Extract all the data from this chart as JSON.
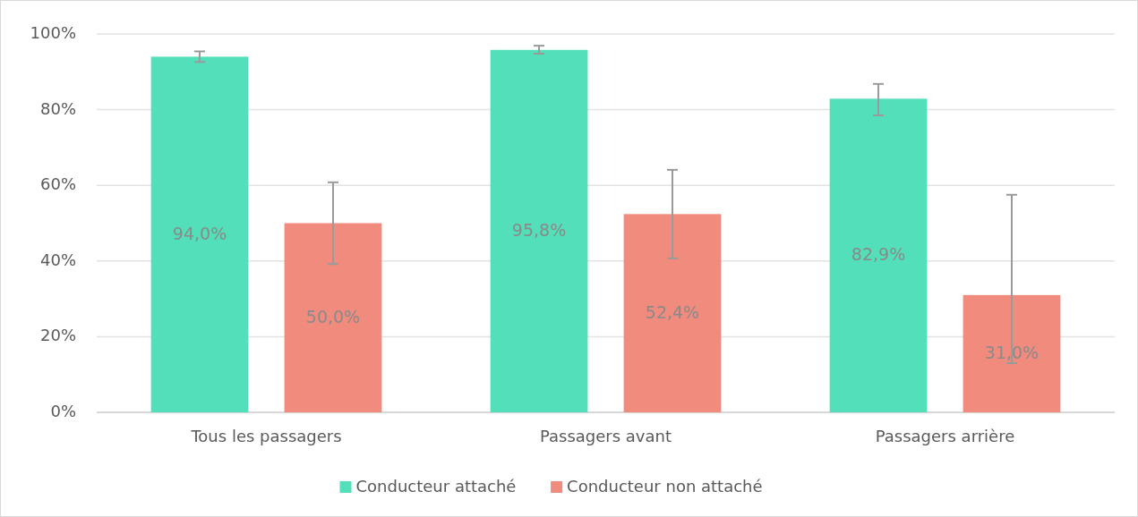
{
  "chart_data": {
    "type": "bar",
    "categories": [
      "Tous les passagers",
      "Passagers avant",
      "Passagers arrière"
    ],
    "series": [
      {
        "name": "Conducteur attaché",
        "color": "#52dfb9",
        "values": [
          94.0,
          95.8,
          82.9
        ],
        "value_labels": [
          "94,0%",
          "95,8%",
          "82,9%"
        ],
        "errors": [
          [
            92.6,
            95.4
          ],
          [
            94.8,
            96.9
          ],
          [
            78.5,
            86.8
          ]
        ]
      },
      {
        "name": "Conducteur non attaché",
        "color": "#f08b7e",
        "values": [
          50.0,
          52.4,
          31.0
        ],
        "value_labels": [
          "50,0%",
          "52,4%",
          "31,0%"
        ],
        "errors": [
          [
            39.2,
            60.8
          ],
          [
            40.7,
            64.1
          ],
          [
            13.0,
            57.5
          ]
        ]
      }
    ],
    "ylim": [
      0,
      100
    ],
    "yticks": [
      {
        "value": 0,
        "label": "0%"
      },
      {
        "value": 20,
        "label": "20%"
      },
      {
        "value": 40,
        "label": "40%"
      },
      {
        "value": 60,
        "label": "60%"
      },
      {
        "value": 80,
        "label": "80%"
      },
      {
        "value": 100,
        "label": "100%"
      }
    ],
    "grid": "y",
    "legend": "bottom"
  }
}
